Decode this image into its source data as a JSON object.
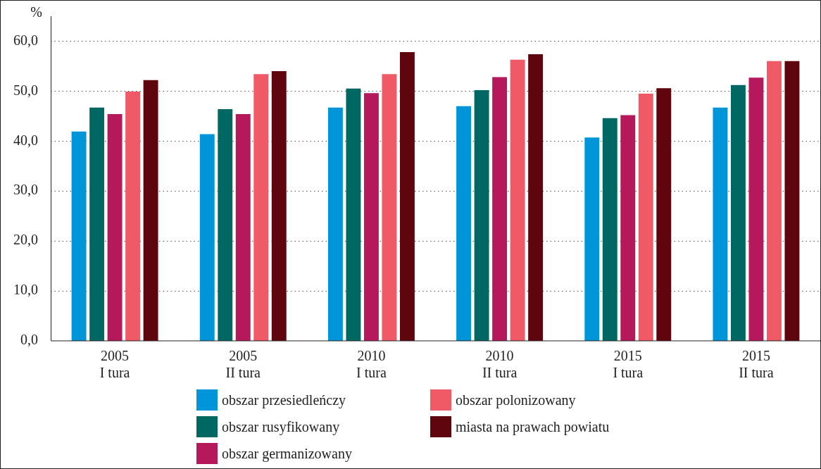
{
  "chart_data": {
    "type": "bar",
    "ylabel": "%",
    "categories": [
      "2005\nI tura",
      "2005\nII tura",
      "2010\nI tura",
      "2010\nII tura",
      "2015\nI tura",
      "2015\nII tura"
    ],
    "series": [
      {
        "name": "obszar przesiedleńczy",
        "color": "#0095d8",
        "values": [
          41.9,
          41.4,
          46.7,
          47.0,
          40.7,
          46.7
        ]
      },
      {
        "name": "obszar rusyfikowany",
        "color": "#006763",
        "values": [
          46.7,
          46.4,
          50.5,
          50.2,
          44.6,
          51.2
        ]
      },
      {
        "name": "obszar germanizowany",
        "color": "#b5195b",
        "values": [
          45.4,
          45.4,
          49.6,
          52.8,
          45.2,
          52.7
        ]
      },
      {
        "name": "obszar polonizowany",
        "color": "#f05a66",
        "values": [
          49.9,
          53.4,
          53.4,
          56.3,
          49.5,
          56.0
        ]
      },
      {
        "name": "miasta na prawach powiatu",
        "color": "#5e050e",
        "values": [
          52.2,
          54.0,
          57.8,
          57.4,
          50.6,
          56.0
        ]
      }
    ],
    "ylim": [
      0,
      65
    ],
    "yticks": [
      {
        "value": 0,
        "label": "0,0"
      },
      {
        "value": 10,
        "label": "10,0"
      },
      {
        "value": 20,
        "label": "20,0"
      },
      {
        "value": 30,
        "label": "30,0"
      },
      {
        "value": 40,
        "label": "40,0"
      },
      {
        "value": 50,
        "label": "50,0"
      },
      {
        "value": 60,
        "label": "60,0"
      }
    ],
    "grid": "y",
    "legend": "bottom"
  }
}
